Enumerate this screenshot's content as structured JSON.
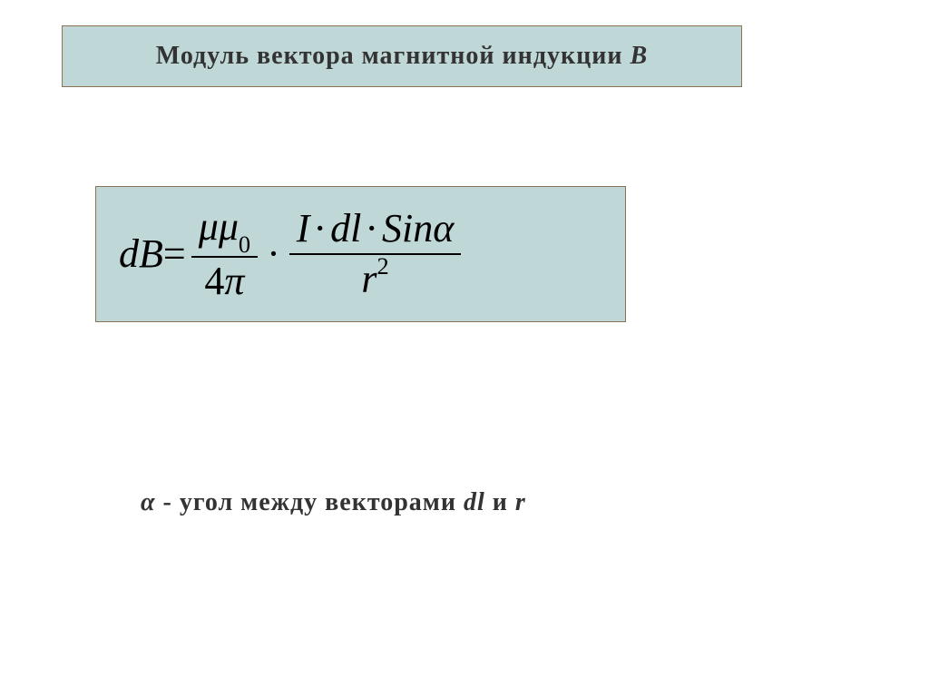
{
  "title": {
    "prefix": "Модуль  вектора  магнитной  индукции  ",
    "symbol": "В"
  },
  "formula": {
    "lhs": "dB",
    "eq": " = ",
    "frac1_num_mu1": "μ",
    "frac1_num_mu2": "μ",
    "frac1_num_sub": "0",
    "frac1_den_four": "4",
    "frac1_den_pi": "π",
    "mult": "·",
    "frac2_num_I": "I",
    "frac2_num_dl": "dl",
    "frac2_num_Sin": "Sin",
    "frac2_num_alpha": "α",
    "frac2_den_r": "r",
    "frac2_den_exp": "2"
  },
  "caption": {
    "alpha": "α",
    "dash": "  -  ",
    "text1": "угол  между  векторами   ",
    "dl": "dl",
    "and": "    и    ",
    "r": "r"
  },
  "colors": {
    "box_bg": "#bfd7d7",
    "box_border": "#8b7355",
    "page_bg": "#ffffff",
    "text": "#333333",
    "formula_text": "#000000"
  }
}
